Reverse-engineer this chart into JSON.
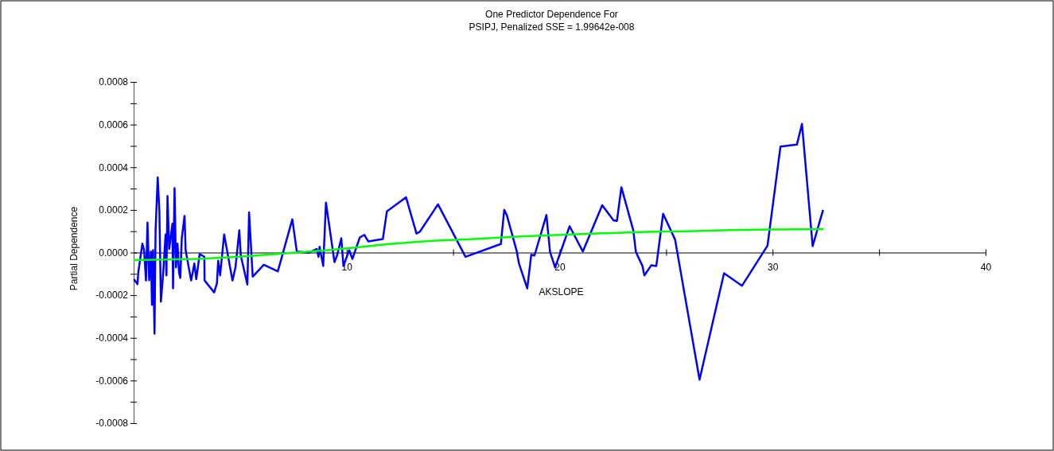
{
  "chart_data": {
    "type": "line",
    "title": "One Predictor Dependence For",
    "subtitle": "PSIPJ, Penalized SSE = 1.99642e-008",
    "xlabel": "AKSLOPE",
    "ylabel": "Partial Dependence",
    "xlim": [
      0,
      40
    ],
    "ylim": [
      -0.0008,
      0.0008
    ],
    "xticks": [
      {
        "value": 5,
        "label": null
      },
      {
        "value": 10,
        "label": "10"
      },
      {
        "value": 15,
        "label": null
      },
      {
        "value": 20,
        "label": "20"
      },
      {
        "value": 25,
        "label": null
      },
      {
        "value": 30,
        "label": "30"
      },
      {
        "value": 35,
        "label": null
      },
      {
        "value": 40,
        "label": "40"
      }
    ],
    "yticks": [
      {
        "value": -0.0008,
        "label": "-0.0008"
      },
      {
        "value": -0.0007,
        "label": null
      },
      {
        "value": -0.0006,
        "label": "-0.0006"
      },
      {
        "value": -0.0005,
        "label": null
      },
      {
        "value": -0.0004,
        "label": "-0.0004"
      },
      {
        "value": -0.0003,
        "label": null
      },
      {
        "value": -0.0002,
        "label": "-0.0002"
      },
      {
        "value": -0.0001,
        "label": null
      },
      {
        "value": 0,
        "label": "0.0000"
      },
      {
        "value": 0.0001,
        "label": null
      },
      {
        "value": 0.0002,
        "label": "0.0002"
      },
      {
        "value": 0.0003,
        "label": null
      },
      {
        "value": 0.0004,
        "label": "0.0004"
      },
      {
        "value": 0.0005,
        "label": null
      },
      {
        "value": 0.0006,
        "label": "0.0006"
      },
      {
        "value": 0.0007,
        "label": null
      },
      {
        "value": 0.0008,
        "label": "0.0008"
      }
    ],
    "grid": false,
    "marker": "none",
    "line_style": "solid",
    "series": [
      {
        "color": "#0000ff",
        "x": [
          0.01,
          0.18,
          0.22,
          0.41,
          0.49,
          0.58,
          0.65,
          0.73,
          0.81,
          0.86,
          0.91,
          0.98,
          1.03,
          1.13,
          1.21,
          1.28,
          1.39,
          1.5,
          1.54,
          1.59,
          1.67,
          1.75,
          1.82,
          1.85,
          1.92,
          1.99,
          2.06,
          2.13,
          2.19,
          2.26,
          2.39,
          2.44,
          2.7,
          2.85,
          2.94,
          3.1,
          3.32,
          3.33,
          3.78,
          3.91,
          3.97,
          4.06,
          4.25,
          4.64,
          4.78,
          4.96,
          5.03,
          5.34,
          5.42,
          5.59,
          6.11,
          6.77,
          7.45,
          7.66,
          8.22,
          8.47,
          8.6,
          8.68,
          8.73,
          8.9,
          9.03,
          9.43,
          9.55,
          9.75,
          9.85,
          10.12,
          10.27,
          10.62,
          10.83,
          11.02,
          11.7,
          11.89,
          12.79,
          13.28,
          13.44,
          14.29,
          15.58,
          17.24,
          17.4,
          17.52,
          17.99,
          18.09,
          18.48,
          18.67,
          18.82,
          19.38,
          19.55,
          19.79,
          20.47,
          21.09,
          22.0,
          22.53,
          22.69,
          22.9,
          23.46,
          23.58,
          23.89,
          23.98,
          24.3,
          24.54,
          24.86,
          25.42,
          26.57,
          27.72,
          28.56,
          29.76,
          30.37,
          31.14,
          31.38,
          31.88,
          32.37
        ],
        "values": [
          -0.000125,
          -0.000148,
          -9.2e-05,
          4.2e-05,
          1.1e-05,
          -0.000131,
          0.000141,
          -0.00013,
          5e-06,
          -0.000245,
          1.1e-05,
          -0.00038,
          0.000104,
          0.000352,
          0.00019,
          -0.00023,
          -9.4e-05,
          8.5e-05,
          -0.000107,
          0.000265,
          1.7e-05,
          7.9e-05,
          0.000135,
          -0.000168,
          0.000302,
          -7e-05,
          4.2e-05,
          -9.4e-05,
          -0.000119,
          6.7e-05,
          0.000172,
          1.1e-05,
          -0.000131,
          -5.1e-05,
          -0.000125,
          -7e-06,
          -2e-05,
          -0.000131,
          -0.000187,
          -0.000144,
          -3.8e-05,
          -0.000107,
          8.5e-05,
          -0.000131,
          -7e-05,
          0.000104,
          -1.4e-05,
          -0.00015,
          0.000188,
          -0.000113,
          -5.7e-05,
          -8.8e-05,
          0.000156,
          5e-06,
          -1e-06,
          1.1e-05,
          1.7e-05,
          -2e-05,
          2.7e-05,
          -6.3e-05,
          0.000234,
          -4.5e-05,
          -1.4e-05,
          6.7e-05,
          -6.3e-05,
          1.1e-05,
          -3e-05,
          7.1e-05,
          8.3e-05,
          5.2e-05,
          6.3e-05,
          0.000193,
          0.000259,
          8.9e-05,
          9.8e-05,
          0.000226,
          -2e-05,
          4e-05,
          0.0002,
          0.000176,
          5e-06,
          -5.1e-05,
          -0.000168,
          -1e-05,
          -1.4e-05,
          0.000176,
          3e-06,
          -7e-05,
          0.000123,
          5e-06,
          0.000222,
          0.000151,
          0.000148,
          0.000306,
          0.000104,
          3e-06,
          -6.3e-05,
          -0.000107,
          -6e-05,
          -6.3e-05,
          0.000182,
          6.1e-05,
          -0.000596,
          -9.7e-05,
          -0.000156,
          3.2e-05,
          0.000497,
          0.000506,
          0.000603,
          3e-05,
          0.0002
        ]
      },
      {
        "color": "#00ff00",
        "x": [
          0,
          3,
          5,
          7,
          9,
          10,
          12,
          14,
          16,
          18,
          20,
          22,
          24,
          26,
          28,
          30,
          32.4
        ],
        "values": [
          -3.5e-05,
          -3e-05,
          -2e-05,
          -5e-06,
          1e-05,
          2e-05,
          4e-05,
          5.5e-05,
          6.3e-05,
          7.5e-05,
          8.3e-05,
          9e-05,
          9.7e-05,
          0.0001,
          0.000105,
          0.000108,
          0.00011
        ]
      }
    ]
  }
}
